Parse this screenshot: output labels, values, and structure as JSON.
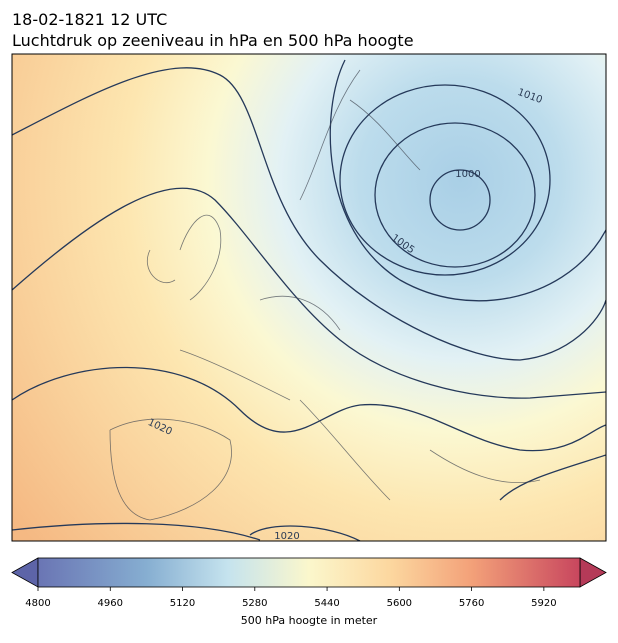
{
  "header": {
    "title": "18-02-1821 12 UTC",
    "subtitle": "Luchtdruk op zeeniveau in hPa en 500 hPa hoogte"
  },
  "isobar_labels": [
    "1010",
    "1000",
    "1005",
    "1020",
    "1020"
  ],
  "colorbar": {
    "label": "500 hPa hoogte in meter",
    "range": [
      4800,
      6000
    ],
    "ticks": [
      4800,
      4960,
      5120,
      5280,
      5440,
      5600,
      5760,
      5920
    ]
  }
}
